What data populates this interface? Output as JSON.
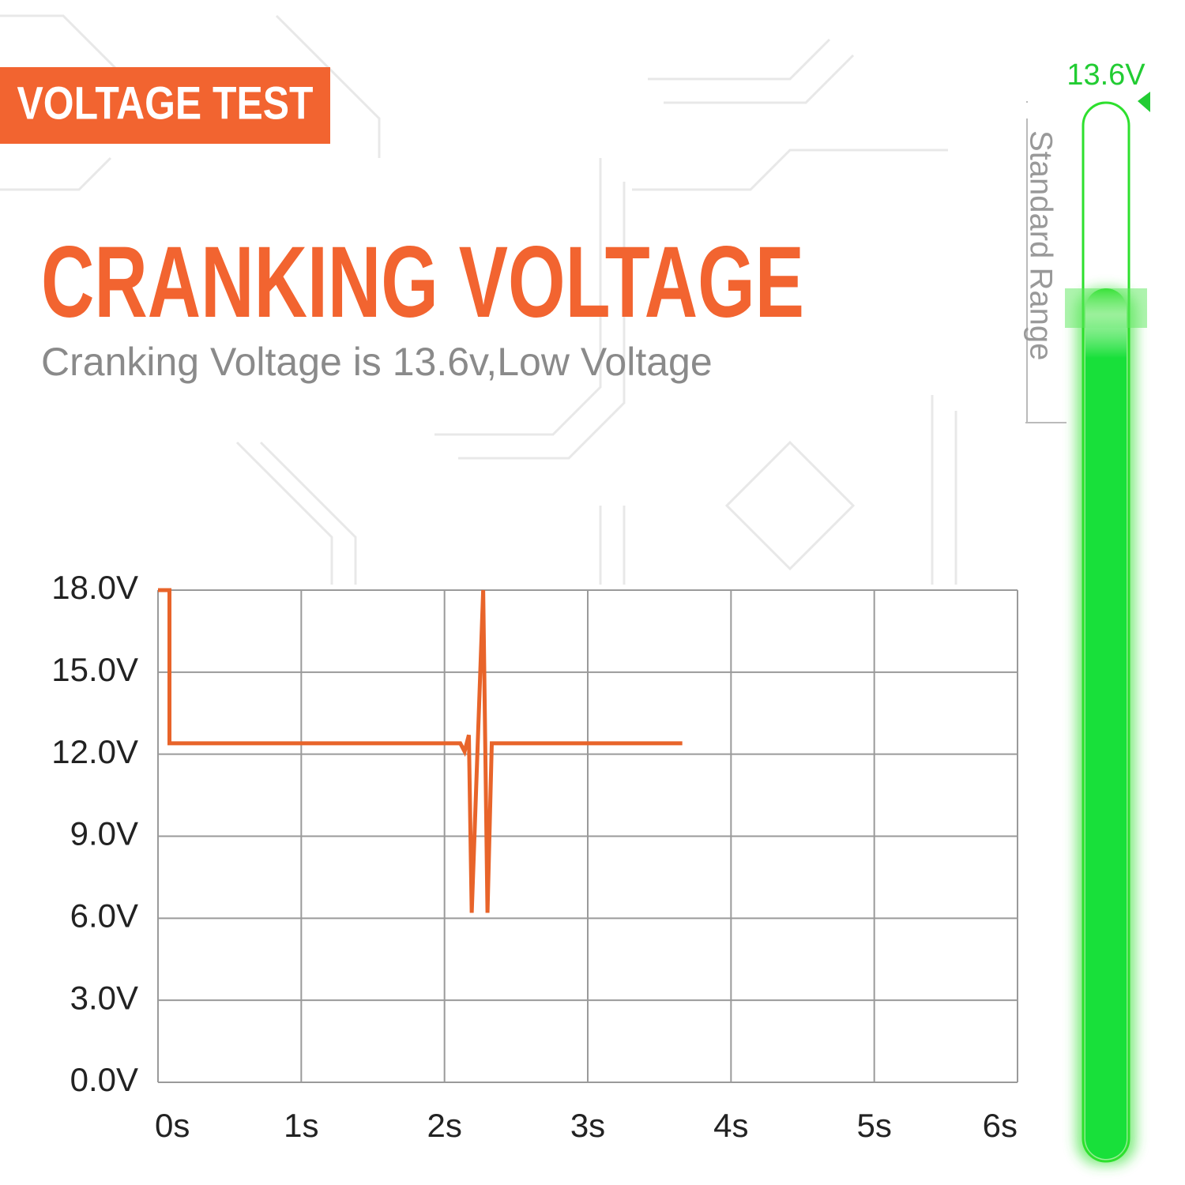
{
  "banner": "VOLTAGE TEST",
  "heading": "CRANKING VOLTAGE",
  "subtitle": "Cranking Voltage is 13.6v,Low Voltage",
  "gauge": {
    "label": "13.6V",
    "range_label": "Standard Range"
  },
  "chart_data": {
    "type": "line",
    "x": [
      0,
      0.08,
      0.08,
      2.11,
      2.14,
      2.17,
      2.19,
      2.27,
      2.3,
      2.33,
      3.66
    ],
    "values": [
      18,
      18,
      12.4,
      12.4,
      12.1,
      12.7,
      6.2,
      18,
      6.2,
      12.4,
      12.4
    ],
    "color": "#e8642a",
    "xlim": [
      0,
      6
    ],
    "xticks": [
      {
        "value": 0,
        "label": "0s"
      },
      {
        "value": 1,
        "label": "1s"
      },
      {
        "value": 2,
        "label": "2s"
      },
      {
        "value": 3,
        "label": "3s"
      },
      {
        "value": 4,
        "label": "4s"
      },
      {
        "value": 5,
        "label": "5s"
      },
      {
        "value": 6,
        "label": "6s"
      }
    ],
    "ylim": [
      0,
      18
    ],
    "yticks": [
      {
        "value": 0,
        "label": "0.0V"
      },
      {
        "value": 3,
        "label": "3.0V"
      },
      {
        "value": 6,
        "label": "6.0V"
      },
      {
        "value": 9,
        "label": "9.0V"
      },
      {
        "value": 12,
        "label": "12.0V"
      },
      {
        "value": 15,
        "label": "15.0V"
      },
      {
        "value": 18,
        "label": "18.0V"
      }
    ],
    "grid": true
  }
}
